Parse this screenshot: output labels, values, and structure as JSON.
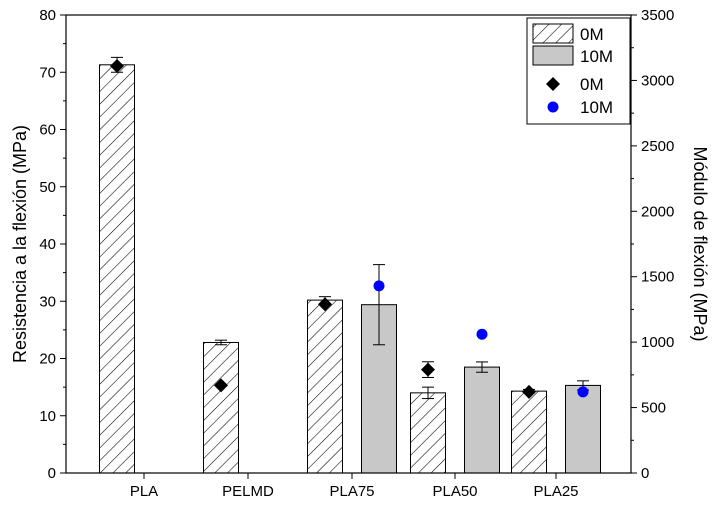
{
  "chart_data": {
    "type": "bar",
    "categories": [
      "PLA",
      "PELMD",
      "PLA75",
      "PLA50",
      "PLA25"
    ],
    "ylabel": "Resistencia a la flexión (MPa)",
    "y2label": "Módulo de flexión (MPa)",
    "ylim": [
      0,
      80
    ],
    "y2lim": [
      0,
      3500
    ],
    "yticks": [
      0,
      10,
      20,
      30,
      40,
      50,
      60,
      70,
      80
    ],
    "y2ticks": [
      0,
      500,
      1000,
      1500,
      2000,
      2500,
      3000,
      3500
    ],
    "series": [
      {
        "name": "0M",
        "kind": "bar",
        "axis": "left",
        "pattern": "hatch",
        "color": "#ffffff",
        "values": [
          71.3,
          22.8,
          30.2,
          14.0,
          14.3
        ],
        "errors": [
          1.3,
          0.4,
          0.6,
          1.0,
          0.3
        ]
      },
      {
        "name": "10M",
        "kind": "bar",
        "axis": "left",
        "pattern": "solid",
        "color": "#c8c8c8",
        "values": [
          null,
          null,
          29.4,
          18.5,
          15.3
        ],
        "errors": [
          null,
          null,
          7.0,
          0.9,
          0.8
        ]
      },
      {
        "name": "0M",
        "kind": "scatter",
        "axis": "right",
        "marker": "diamond",
        "color": "#000000",
        "values": [
          3110,
          670,
          1290,
          790,
          620
        ],
        "errors": [
          null,
          null,
          null,
          60,
          null
        ]
      },
      {
        "name": "10M",
        "kind": "scatter",
        "axis": "right",
        "marker": "circle",
        "color": "#0000ff",
        "values": [
          null,
          null,
          1430,
          1060,
          620
        ],
        "errors": [
          null,
          null,
          null,
          null,
          null
        ]
      }
    ],
    "legend": "top-right"
  }
}
